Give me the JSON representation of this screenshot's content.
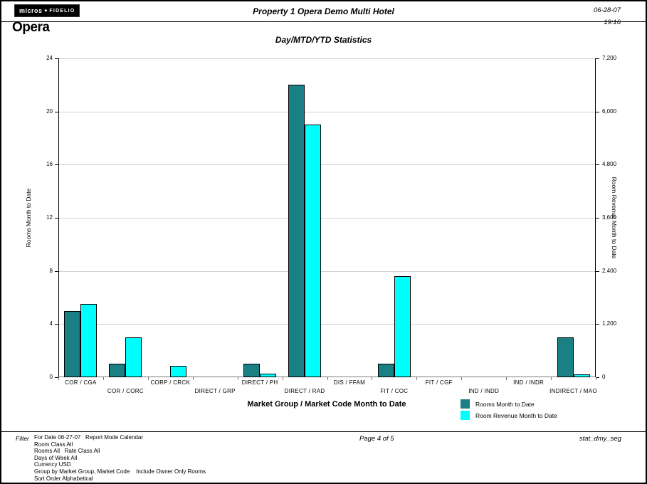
{
  "header": {
    "logo_micros": "micros",
    "logo_fidelio": "FIDELIO",
    "logo_opera": "Opera",
    "title": "Property 1 Opera Demo Multi Hotel",
    "date": "06-28-07",
    "time": "19:16"
  },
  "chart_data": {
    "type": "bar",
    "title": "Day/MTD/YTD Statistics",
    "xlabel": "Market Group / Market Code Month to Date",
    "categories": [
      "COR / CGA",
      "COR / CORC",
      "CORP / CRCK",
      "DIRECT / GRP",
      "DIRECT / PH",
      "DIRECT / RAD",
      "DIS / FFAM",
      "FIT / COC",
      "FIT / CGF",
      "IND / INDD",
      "IND / INDR",
      "INDIRECT / MAO"
    ],
    "series": [
      {
        "name": "Rooms Month to Date",
        "axis": "left",
        "color": "#1a8084",
        "values": [
          5,
          1,
          0,
          0,
          1,
          22,
          0,
          1,
          0,
          0,
          0,
          3
        ]
      },
      {
        "name": "Room Revenue Month to Date",
        "axis": "right",
        "color": "#00ffff",
        "values": [
          1650,
          900,
          250,
          0,
          75,
          5700,
          0,
          2280,
          0,
          0,
          0,
          60
        ]
      }
    ],
    "left_axis": {
      "label": "Rooms Month to Date",
      "min": 0,
      "max": 24,
      "ticks": [
        0,
        4,
        8,
        12,
        16,
        20,
        24
      ]
    },
    "right_axis": {
      "label": "Room Revenue Month to Date",
      "min": 0,
      "max": 7200,
      "ticks": [
        "0",
        "1,200",
        "2,400",
        "3,600",
        "4,800",
        "6,000",
        "7,200"
      ]
    },
    "grid": true,
    "legend_position": "bottom-right"
  },
  "footer": {
    "filter_label": "Filter",
    "filter_lines": [
      "For Date 06-27-07   Report Mode Calendar",
      "Room Class All",
      "Rooms All   Rate Class All",
      "Days of Week All",
      "Currency USD",
      "Group by Market Group, Market Code    Include Owner Only Rooms",
      "Sort Order Alphabetical"
    ],
    "page": "Page 4 of 5",
    "report_id": "stat_dmy_seg"
  }
}
